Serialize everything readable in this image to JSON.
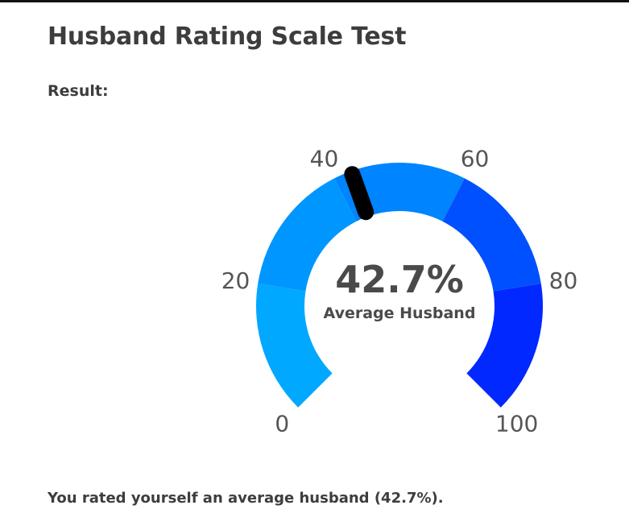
{
  "page": {
    "title": "Husband Rating Scale Test",
    "result_label": "Result:",
    "result_text": "You rated yourself an average husband (42.7%)."
  },
  "gauge": {
    "value": 42.7,
    "value_text": "42.7%",
    "caption": "Average Husband",
    "min": 0,
    "max": 100,
    "ticks": [
      "0",
      "20",
      "40",
      "60",
      "80",
      "100"
    ],
    "segments": [
      {
        "from": 0,
        "to": 20,
        "color": "#00a8ff"
      },
      {
        "from": 20,
        "to": 40,
        "color": "#0096ff"
      },
      {
        "from": 40,
        "to": 60,
        "color": "#0084ff"
      },
      {
        "from": 60,
        "to": 80,
        "color": "#0050ff"
      },
      {
        "from": 80,
        "to": 100,
        "color": "#0028ff"
      }
    ],
    "needle_color": "#000000"
  }
}
